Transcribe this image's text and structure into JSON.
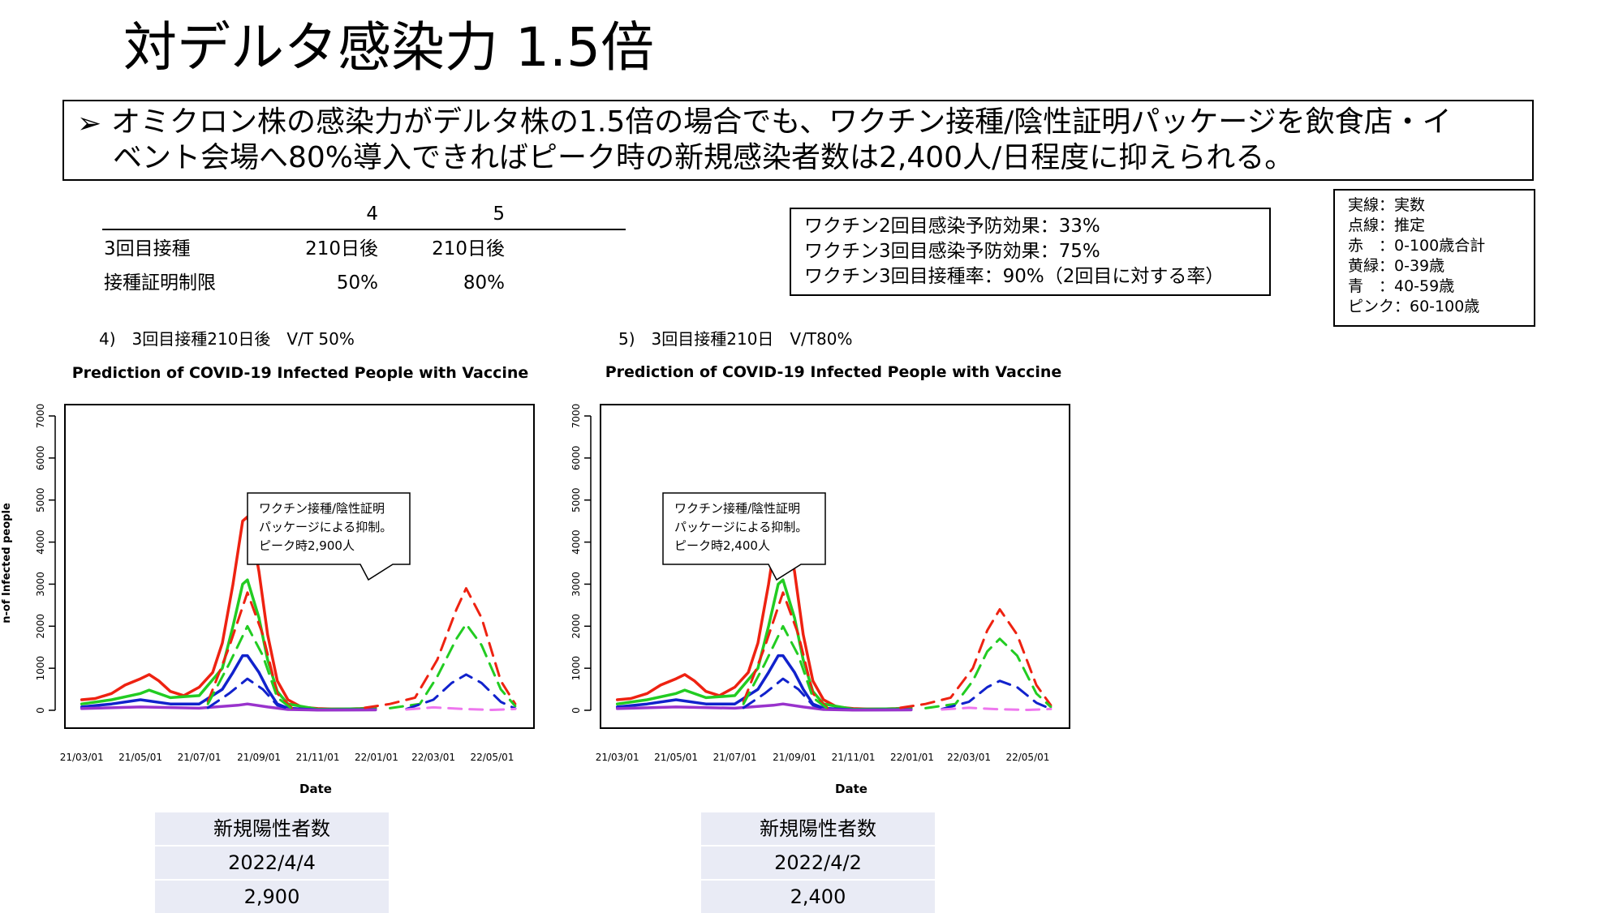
{
  "slide": {
    "title": "対デルタ感染力 1.5倍",
    "bullet_marker": "➢",
    "bullet_line1": "オミクロン株の感染力がデルタ株の1.5倍の場合でも、ワクチン接種/陰性証明パッケージを飲食店・イ",
    "bullet_line2": "ベント会場へ80%導入できればピーク時の新規感染者数は2,400人/日程度に抑えられる。"
  },
  "param_table": {
    "columns": [
      "4",
      "5"
    ],
    "rows": [
      {
        "label": "3回目接種",
        "values": [
          "210日後",
          "210日後"
        ]
      },
      {
        "label": "接種証明制限",
        "values": [
          "50%",
          "80%"
        ]
      }
    ]
  },
  "vaccine_box": {
    "lines": [
      "ワクチン2回目感染予防効果：33%",
      "ワクチン3回目感染予防効果：75%",
      "ワクチン3回目接種率：90%（2回目に対する率）"
    ]
  },
  "legend_box": {
    "lines": [
      "実線：実数",
      "点線：推定",
      "赤　：0-100歳合計",
      "黄緑：0-39歳",
      "青　：40-59歳",
      "ピンク：60-100歳"
    ]
  },
  "colors": {
    "red": "#ee2211",
    "green": "#22cc22",
    "blue": "#1122cc",
    "purple": "#9933cc",
    "pink": "#ee77ee",
    "table_bg": "#e9ebf5"
  },
  "chart_data": [
    {
      "type": "line",
      "caption": "4)　3回目接種210日後　V/T 50%",
      "title": "Prediction of COVID-19 Infected People with Vaccine",
      "xlabel": "Date",
      "ylabel": "n-of Infected people",
      "ylim": [
        0,
        7000
      ],
      "yticks": [
        0,
        1000,
        2000,
        3000,
        4000,
        5000,
        6000,
        7000
      ],
      "xticks": [
        "21/03/01",
        "21/05/01",
        "21/07/01",
        "21/09/01",
        "21/11/01",
        "22/01/01",
        "22/03/01",
        "22/05/01"
      ],
      "callout": [
        "ワクチン接種/陰性証明",
        "パッケージによる抑制。",
        "ピーク時2,900人"
      ],
      "series": [
        {
          "color_key": "red",
          "style": "solid",
          "x": [
            "2021-03-01",
            "2021-03-15",
            "2021-04-01",
            "2021-04-15",
            "2021-05-01",
            "2021-05-10",
            "2021-05-20",
            "2021-06-01",
            "2021-06-15",
            "2021-07-01",
            "2021-07-15",
            "2021-07-25",
            "2021-08-05",
            "2021-08-15",
            "2021-08-20",
            "2021-08-25",
            "2021-09-01",
            "2021-09-10",
            "2021-09-20",
            "2021-10-01",
            "2021-10-15",
            "2021-11-01",
            "2021-11-15",
            "2021-12-01",
            "2021-12-15",
            "2021-12-31"
          ],
          "y": [
            250,
            280,
            400,
            600,
            750,
            850,
            700,
            450,
            350,
            550,
            900,
            1600,
            3000,
            4500,
            4600,
            4200,
            3300,
            1800,
            700,
            250,
            80,
            40,
            30,
            30,
            40,
            60
          ]
        },
        {
          "color_key": "green",
          "style": "solid",
          "x": [
            "2021-03-01",
            "2021-04-01",
            "2021-05-01",
            "2021-05-10",
            "2021-06-01",
            "2021-07-01",
            "2021-07-25",
            "2021-08-05",
            "2021-08-15",
            "2021-08-20",
            "2021-09-01",
            "2021-09-10",
            "2021-09-20",
            "2021-10-01",
            "2021-11-01",
            "2021-12-31"
          ],
          "y": [
            150,
            250,
            400,
            480,
            300,
            350,
            1000,
            2000,
            3000,
            3100,
            2200,
            1200,
            450,
            150,
            25,
            40
          ]
        },
        {
          "color_key": "blue",
          "style": "solid",
          "x": [
            "2021-03-01",
            "2021-04-01",
            "2021-05-01",
            "2021-06-01",
            "2021-07-01",
            "2021-07-25",
            "2021-08-05",
            "2021-08-15",
            "2021-08-20",
            "2021-09-01",
            "2021-09-10",
            "2021-09-20",
            "2021-10-01",
            "2021-11-01",
            "2021-12-31"
          ],
          "y": [
            80,
            150,
            250,
            150,
            150,
            500,
            900,
            1300,
            1300,
            900,
            500,
            150,
            50,
            10,
            15
          ]
        },
        {
          "color_key": "purple",
          "style": "solid",
          "x": [
            "2021-03-01",
            "2021-05-01",
            "2021-07-01",
            "2021-08-10",
            "2021-08-20",
            "2021-09-10",
            "2021-10-01",
            "2021-11-01",
            "2021-12-31"
          ],
          "y": [
            40,
            80,
            50,
            120,
            150,
            80,
            20,
            5,
            10
          ]
        },
        {
          "color_key": "red",
          "style": "dashed",
          "x": [
            "2021-07-10",
            "2021-08-01",
            "2021-08-20",
            "2021-09-05",
            "2021-09-20",
            "2021-10-05"
          ],
          "y": [
            200,
            1500,
            2800,
            1800,
            400,
            60
          ]
        },
        {
          "color_key": "green",
          "style": "dashed",
          "x": [
            "2021-07-10",
            "2021-08-01",
            "2021-08-20",
            "2021-09-05",
            "2021-09-20",
            "2021-10-05"
          ],
          "y": [
            150,
            1100,
            2000,
            1300,
            300,
            40
          ]
        },
        {
          "color_key": "blue",
          "style": "dashed",
          "x": [
            "2021-07-10",
            "2021-08-01",
            "2021-08-20",
            "2021-09-05",
            "2021-09-20",
            "2021-10-05"
          ],
          "y": [
            60,
            400,
            750,
            500,
            120,
            20
          ]
        },
        {
          "color_key": "red",
          "style": "dashed",
          "x": [
            "2021-12-20",
            "2022-01-15",
            "2022-02-10",
            "2022-03-05",
            "2022-03-25",
            "2022-04-04",
            "2022-04-20",
            "2022-05-10",
            "2022-05-25"
          ],
          "y": [
            60,
            150,
            300,
            1200,
            2400,
            2900,
            2200,
            700,
            150
          ]
        },
        {
          "color_key": "green",
          "style": "dashed",
          "x": [
            "2022-01-15",
            "2022-02-15",
            "2022-03-05",
            "2022-03-25",
            "2022-04-04",
            "2022-04-20",
            "2022-05-10",
            "2022-05-25"
          ],
          "y": [
            50,
            150,
            800,
            1700,
            2050,
            1550,
            500,
            100
          ]
        },
        {
          "color_key": "blue",
          "style": "dashed",
          "x": [
            "2022-02-01",
            "2022-03-01",
            "2022-03-20",
            "2022-04-04",
            "2022-04-20",
            "2022-05-10",
            "2022-05-25"
          ],
          "y": [
            30,
            250,
            650,
            850,
            650,
            200,
            40
          ]
        },
        {
          "color_key": "pink",
          "style": "dashed",
          "x": [
            "2022-02-01",
            "2022-03-01",
            "2022-04-01",
            "2022-05-01",
            "2022-05-25"
          ],
          "y": [
            20,
            70,
            30,
            10,
            30
          ]
        }
      ]
    },
    {
      "type": "line",
      "caption": "5)　3回目接種210日　V/T80%",
      "title": "Prediction of COVID-19 Infected People with Vaccine",
      "xlabel": "Date",
      "ylabel": "",
      "ylim": [
        0,
        7000
      ],
      "yticks": [
        0,
        1000,
        2000,
        3000,
        4000,
        5000,
        6000,
        7000
      ],
      "xticks": [
        "21/03/01",
        "21/05/01",
        "21/07/01",
        "21/09/01",
        "21/11/01",
        "22/01/01",
        "22/03/01",
        "22/05/01"
      ],
      "callout": [
        "ワクチン接種/陰性証明",
        "パッケージによる抑制。",
        "ピーク時2,400人"
      ],
      "series": [
        {
          "color_key": "red",
          "style": "solid",
          "x": [
            "2021-03-01",
            "2021-03-15",
            "2021-04-01",
            "2021-04-15",
            "2021-05-01",
            "2021-05-10",
            "2021-05-20",
            "2021-06-01",
            "2021-06-15",
            "2021-07-01",
            "2021-07-15",
            "2021-07-25",
            "2021-08-05",
            "2021-08-15",
            "2021-08-20",
            "2021-08-25",
            "2021-09-01",
            "2021-09-10",
            "2021-09-20",
            "2021-10-01",
            "2021-10-15",
            "2021-11-01",
            "2021-11-15",
            "2021-12-01",
            "2021-12-15",
            "2021-12-31"
          ],
          "y": [
            250,
            280,
            400,
            600,
            750,
            850,
            700,
            450,
            350,
            550,
            900,
            1600,
            3000,
            4500,
            4600,
            4200,
            3300,
            1800,
            700,
            250,
            80,
            40,
            30,
            30,
            40,
            60
          ]
        },
        {
          "color_key": "green",
          "style": "solid",
          "x": [
            "2021-03-01",
            "2021-04-01",
            "2021-05-01",
            "2021-05-10",
            "2021-06-01",
            "2021-07-01",
            "2021-07-25",
            "2021-08-05",
            "2021-08-15",
            "2021-08-20",
            "2021-09-01",
            "2021-09-10",
            "2021-09-20",
            "2021-10-01",
            "2021-11-01",
            "2021-12-31"
          ],
          "y": [
            150,
            250,
            400,
            480,
            300,
            350,
            1000,
            2000,
            3000,
            3100,
            2200,
            1200,
            450,
            150,
            25,
            40
          ]
        },
        {
          "color_key": "blue",
          "style": "solid",
          "x": [
            "2021-03-01",
            "2021-04-01",
            "2021-05-01",
            "2021-06-01",
            "2021-07-01",
            "2021-07-25",
            "2021-08-05",
            "2021-08-15",
            "2021-08-20",
            "2021-09-01",
            "2021-09-10",
            "2021-09-20",
            "2021-10-01",
            "2021-11-01",
            "2021-12-31"
          ],
          "y": [
            80,
            150,
            250,
            150,
            150,
            500,
            900,
            1300,
            1300,
            900,
            500,
            150,
            50,
            10,
            15
          ]
        },
        {
          "color_key": "purple",
          "style": "solid",
          "x": [
            "2021-03-01",
            "2021-05-01",
            "2021-07-01",
            "2021-08-10",
            "2021-08-20",
            "2021-09-10",
            "2021-10-01",
            "2021-11-01",
            "2021-12-31"
          ],
          "y": [
            40,
            80,
            50,
            120,
            150,
            80,
            20,
            5,
            10
          ]
        },
        {
          "color_key": "red",
          "style": "dashed",
          "x": [
            "2021-07-10",
            "2021-08-01",
            "2021-08-20",
            "2021-09-05",
            "2021-09-20",
            "2021-10-05"
          ],
          "y": [
            200,
            1500,
            2800,
            1800,
            400,
            60
          ]
        },
        {
          "color_key": "green",
          "style": "dashed",
          "x": [
            "2021-07-10",
            "2021-08-01",
            "2021-08-20",
            "2021-09-05",
            "2021-09-20",
            "2021-10-05"
          ],
          "y": [
            150,
            1100,
            2000,
            1300,
            300,
            40
          ]
        },
        {
          "color_key": "blue",
          "style": "dashed",
          "x": [
            "2021-07-10",
            "2021-08-01",
            "2021-08-20",
            "2021-09-05",
            "2021-09-20",
            "2021-10-05"
          ],
          "y": [
            60,
            400,
            750,
            500,
            120,
            20
          ]
        },
        {
          "color_key": "red",
          "style": "dashed",
          "x": [
            "2021-12-20",
            "2022-01-15",
            "2022-02-10",
            "2022-03-05",
            "2022-03-20",
            "2022-04-02",
            "2022-04-20",
            "2022-05-10",
            "2022-05-25"
          ],
          "y": [
            60,
            150,
            300,
            1000,
            1900,
            2400,
            1800,
            600,
            120
          ]
        },
        {
          "color_key": "green",
          "style": "dashed",
          "x": [
            "2022-01-15",
            "2022-02-15",
            "2022-03-05",
            "2022-03-20",
            "2022-04-02",
            "2022-04-20",
            "2022-05-10",
            "2022-05-25"
          ],
          "y": [
            50,
            150,
            700,
            1400,
            1700,
            1300,
            400,
            80
          ]
        },
        {
          "color_key": "blue",
          "style": "dashed",
          "x": [
            "2022-02-01",
            "2022-03-01",
            "2022-03-20",
            "2022-04-02",
            "2022-04-20",
            "2022-05-10",
            "2022-05-25"
          ],
          "y": [
            30,
            200,
            550,
            700,
            550,
            180,
            30
          ]
        },
        {
          "color_key": "pink",
          "style": "dashed",
          "x": [
            "2022-02-01",
            "2022-03-01",
            "2022-04-01",
            "2022-05-01",
            "2022-05-25"
          ],
          "y": [
            20,
            60,
            25,
            10,
            30
          ]
        }
      ]
    }
  ],
  "results": [
    {
      "header": "新規陽性者数",
      "date": "2022/4/4",
      "value": "2,900"
    },
    {
      "header": "新規陽性者数",
      "date": "2022/4/2",
      "value": "2,400"
    }
  ]
}
